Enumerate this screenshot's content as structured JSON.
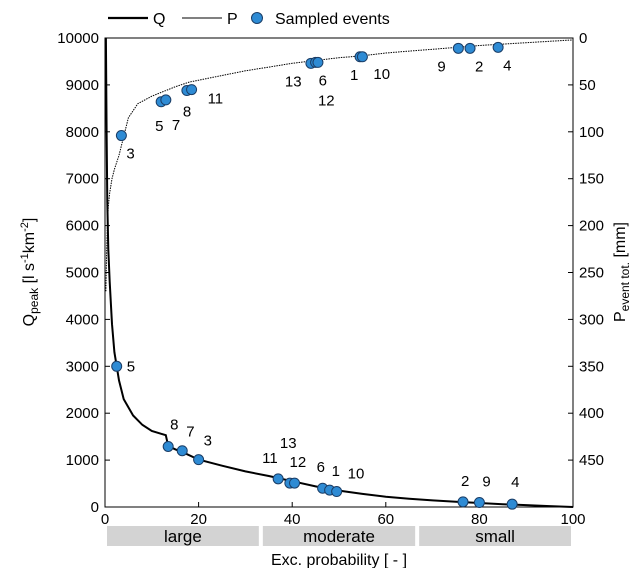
{
  "chart_data": {
    "type": "line",
    "legend": {
      "placement": "top",
      "entries": [
        {
          "label": "Q",
          "style": "thick-line"
        },
        {
          "label": "P",
          "style": "thin-line"
        },
        {
          "label": "Sampled events",
          "style": "marker"
        }
      ]
    },
    "x_axis": {
      "label": "Exc. probability [ - ]",
      "range": [
        0,
        100
      ],
      "ticks": [
        "0",
        "20",
        "40",
        "60",
        "80",
        "100"
      ]
    },
    "y_left": {
      "label_main": "Q",
      "label_sub": "peak",
      "label_units_open": " [l s",
      "label_units_exp1": "-1",
      "label_units_mid": "km",
      "label_units_exp2": "-2",
      "label_units_close": "]",
      "range": [
        0,
        10000
      ],
      "ticks": [
        "0",
        "1000",
        "2000",
        "3000",
        "4000",
        "5000",
        "6000",
        "7000",
        "8000",
        "9000",
        "10000"
      ]
    },
    "y_right": {
      "label_main": "P",
      "label_sub": "event tot.",
      "label_units": " [mm]",
      "range": [
        0,
        500
      ],
      "reversed": true,
      "ticks": [
        "0",
        "50",
        "100",
        "150",
        "200",
        "250",
        "300",
        "350",
        "400",
        "450"
      ]
    },
    "classes": [
      {
        "label": "large",
        "x_from": 0,
        "x_to": 33.3
      },
      {
        "label": "moderate",
        "x_from": 33.3,
        "x_to": 66.7
      },
      {
        "label": "small",
        "x_from": 66.7,
        "x_to": 100
      }
    ],
    "Q_curve": {
      "x": [
        0.2,
        0.35,
        0.5,
        0.7,
        1,
        1.5,
        2,
        2.5,
        3,
        4,
        6,
        8,
        10,
        12,
        13,
        13.5,
        15,
        17,
        20,
        25,
        30,
        35,
        40,
        45,
        50,
        55,
        60,
        65,
        70,
        75,
        80,
        85,
        90,
        95,
        100
      ],
      "y": [
        10000,
        8000,
        6500,
        5500,
        4800,
        3900,
        3300,
        3000,
        2700,
        2300,
        1950,
        1750,
        1620,
        1560,
        1530,
        1300,
        1230,
        1150,
        1010,
        880,
        760,
        660,
        550,
        440,
        350,
        280,
        220,
        175,
        140,
        110,
        85,
        60,
        40,
        20,
        0
      ]
    },
    "P_curve": {
      "x": [
        0.2,
        0.35,
        0.5,
        0.7,
        1,
        1.5,
        2,
        3,
        4,
        5,
        7,
        10,
        12,
        15,
        18,
        20,
        25,
        30,
        35,
        40,
        45,
        50,
        55,
        60,
        65,
        70,
        75,
        80,
        85,
        90,
        95,
        100
      ],
      "y": [
        270,
        230,
        200,
        180,
        165,
        150,
        140,
        125,
        105,
        85,
        70,
        62,
        58,
        52,
        47,
        45,
        40,
        35,
        31,
        27,
        24,
        21,
        19,
        16,
        14,
        12,
        10,
        8,
        6.5,
        5,
        3.5,
        2
      ]
    },
    "Q_events": [
      {
        "id": "5",
        "x": 2.5,
        "y": 3000
      },
      {
        "id": "8",
        "x": 13.5,
        "y": 1290
      },
      {
        "id": "7",
        "x": 16.5,
        "y": 1200
      },
      {
        "id": "3",
        "x": 20,
        "y": 1010
      },
      {
        "id": "11",
        "x": 37,
        "y": 600
      },
      {
        "id": "13",
        "x": 39.5,
        "y": 510
      },
      {
        "id": "12",
        "x": 40.5,
        "y": 510
      },
      {
        "id": "6",
        "x": 46.5,
        "y": 400
      },
      {
        "id": "1",
        "x": 48,
        "y": 360
      },
      {
        "id": "10",
        "x": 49.5,
        "y": 330
      },
      {
        "id": "2",
        "x": 76.5,
        "y": 110
      },
      {
        "id": "9",
        "x": 80,
        "y": 95
      },
      {
        "id": "4",
        "x": 87,
        "y": 60
      }
    ],
    "P_events": [
      {
        "id": "3",
        "x": 3.5,
        "y": 104
      },
      {
        "id": "5",
        "x": 12,
        "y": 68
      },
      {
        "id": "7",
        "x": 13,
        "y": 66
      },
      {
        "id": "8",
        "x": 17.5,
        "y": 56
      },
      {
        "id": "11",
        "x": 18.5,
        "y": 55
      },
      {
        "id": "13",
        "x": 44,
        "y": 27
      },
      {
        "id": "6",
        "x": 45,
        "y": 26
      },
      {
        "id": "12",
        "x": 45.5,
        "y": 26
      },
      {
        "id": "1",
        "x": 54.5,
        "y": 20
      },
      {
        "id": "10",
        "x": 55,
        "y": 20
      },
      {
        "id": "9",
        "x": 75.5,
        "y": 11
      },
      {
        "id": "2",
        "x": 78,
        "y": 11
      },
      {
        "id": "4",
        "x": 84,
        "y": 10
      }
    ]
  },
  "colors": {
    "marker_fill": "#2e8bd4",
    "marker_stroke": "#1a3d66",
    "band_fill": "#d3d3d3",
    "line": "#000000"
  }
}
